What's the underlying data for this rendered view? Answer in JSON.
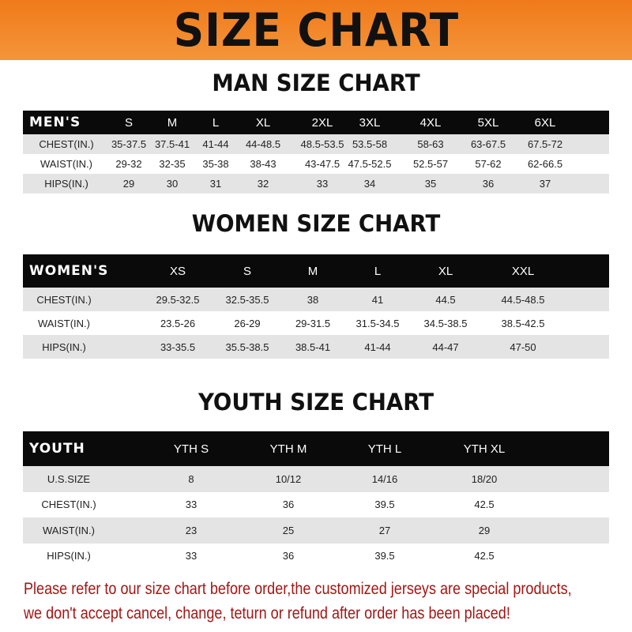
{
  "banner_title": "SIZE CHART",
  "men": {
    "title": "MAN SIZE CHART",
    "header": [
      "MEN'S",
      "S",
      "M",
      "L",
      "XL",
      "2XL",
      "3XL",
      "4XL",
      "5XL",
      "6XL"
    ],
    "rows": [
      [
        "CHEST(IN.)",
        "35-37.5",
        "37.5-41",
        "41-44",
        "44-48.5",
        "48.5-53.5",
        "53.5-58",
        "58-63",
        "63-67.5",
        "67.5-72"
      ],
      [
        "WAIST(IN.)",
        "29-32",
        "32-35",
        "35-38",
        "38-43",
        "43-47.5",
        "47.5-52.5",
        "52.5-57",
        "57-62",
        "62-66.5"
      ],
      [
        "HIPS(IN.)",
        "29",
        "30",
        "31",
        "32",
        "33",
        "34",
        "35",
        "36",
        "37"
      ]
    ]
  },
  "women": {
    "title": "WOMEN SIZE CHART",
    "header": [
      "WOMEN'S",
      "XS",
      "S",
      "M",
      "L",
      "XL",
      "XXL"
    ],
    "rows": [
      [
        "CHEST(IN.)",
        "29.5-32.5",
        "32.5-35.5",
        "38",
        "41",
        "44.5",
        "44.5-48.5"
      ],
      [
        "WAIST(IN.)",
        "23.5-26",
        "26-29",
        "29-31.5",
        "31.5-34.5",
        "34.5-38.5",
        "38.5-42.5"
      ],
      [
        "HIPS(IN.)",
        "33-35.5",
        "35.5-38.5",
        "38.5-41",
        "41-44",
        "44-47",
        "47-50"
      ]
    ]
  },
  "youth": {
    "title": "YOUTH SIZE CHART",
    "header": [
      "YOUTH",
      "YTH S",
      "YTH M",
      "YTH L",
      "YTH XL"
    ],
    "rows": [
      [
        "U.S.SIZE",
        "8",
        "10/12",
        "14/16",
        "18/20"
      ],
      [
        "CHEST(IN.)",
        "33",
        "36",
        "39.5",
        "42.5"
      ],
      [
        "WAIST(IN.)",
        "23",
        "25",
        "27",
        "29"
      ],
      [
        "HIPS(IN.)",
        "33",
        "36",
        "39.5",
        "42.5"
      ]
    ]
  },
  "note": {
    "line1": "Please refer to our size chart before order,the customized jerseys are special products,",
    "line2": "we don't accept cancel, change, teturn or refund after order has been placed!"
  },
  "colors": {
    "banner": "#f07a1a",
    "header_row": "#0a0a0a",
    "stripe": "#e4e4e4",
    "note": "#a21616"
  }
}
